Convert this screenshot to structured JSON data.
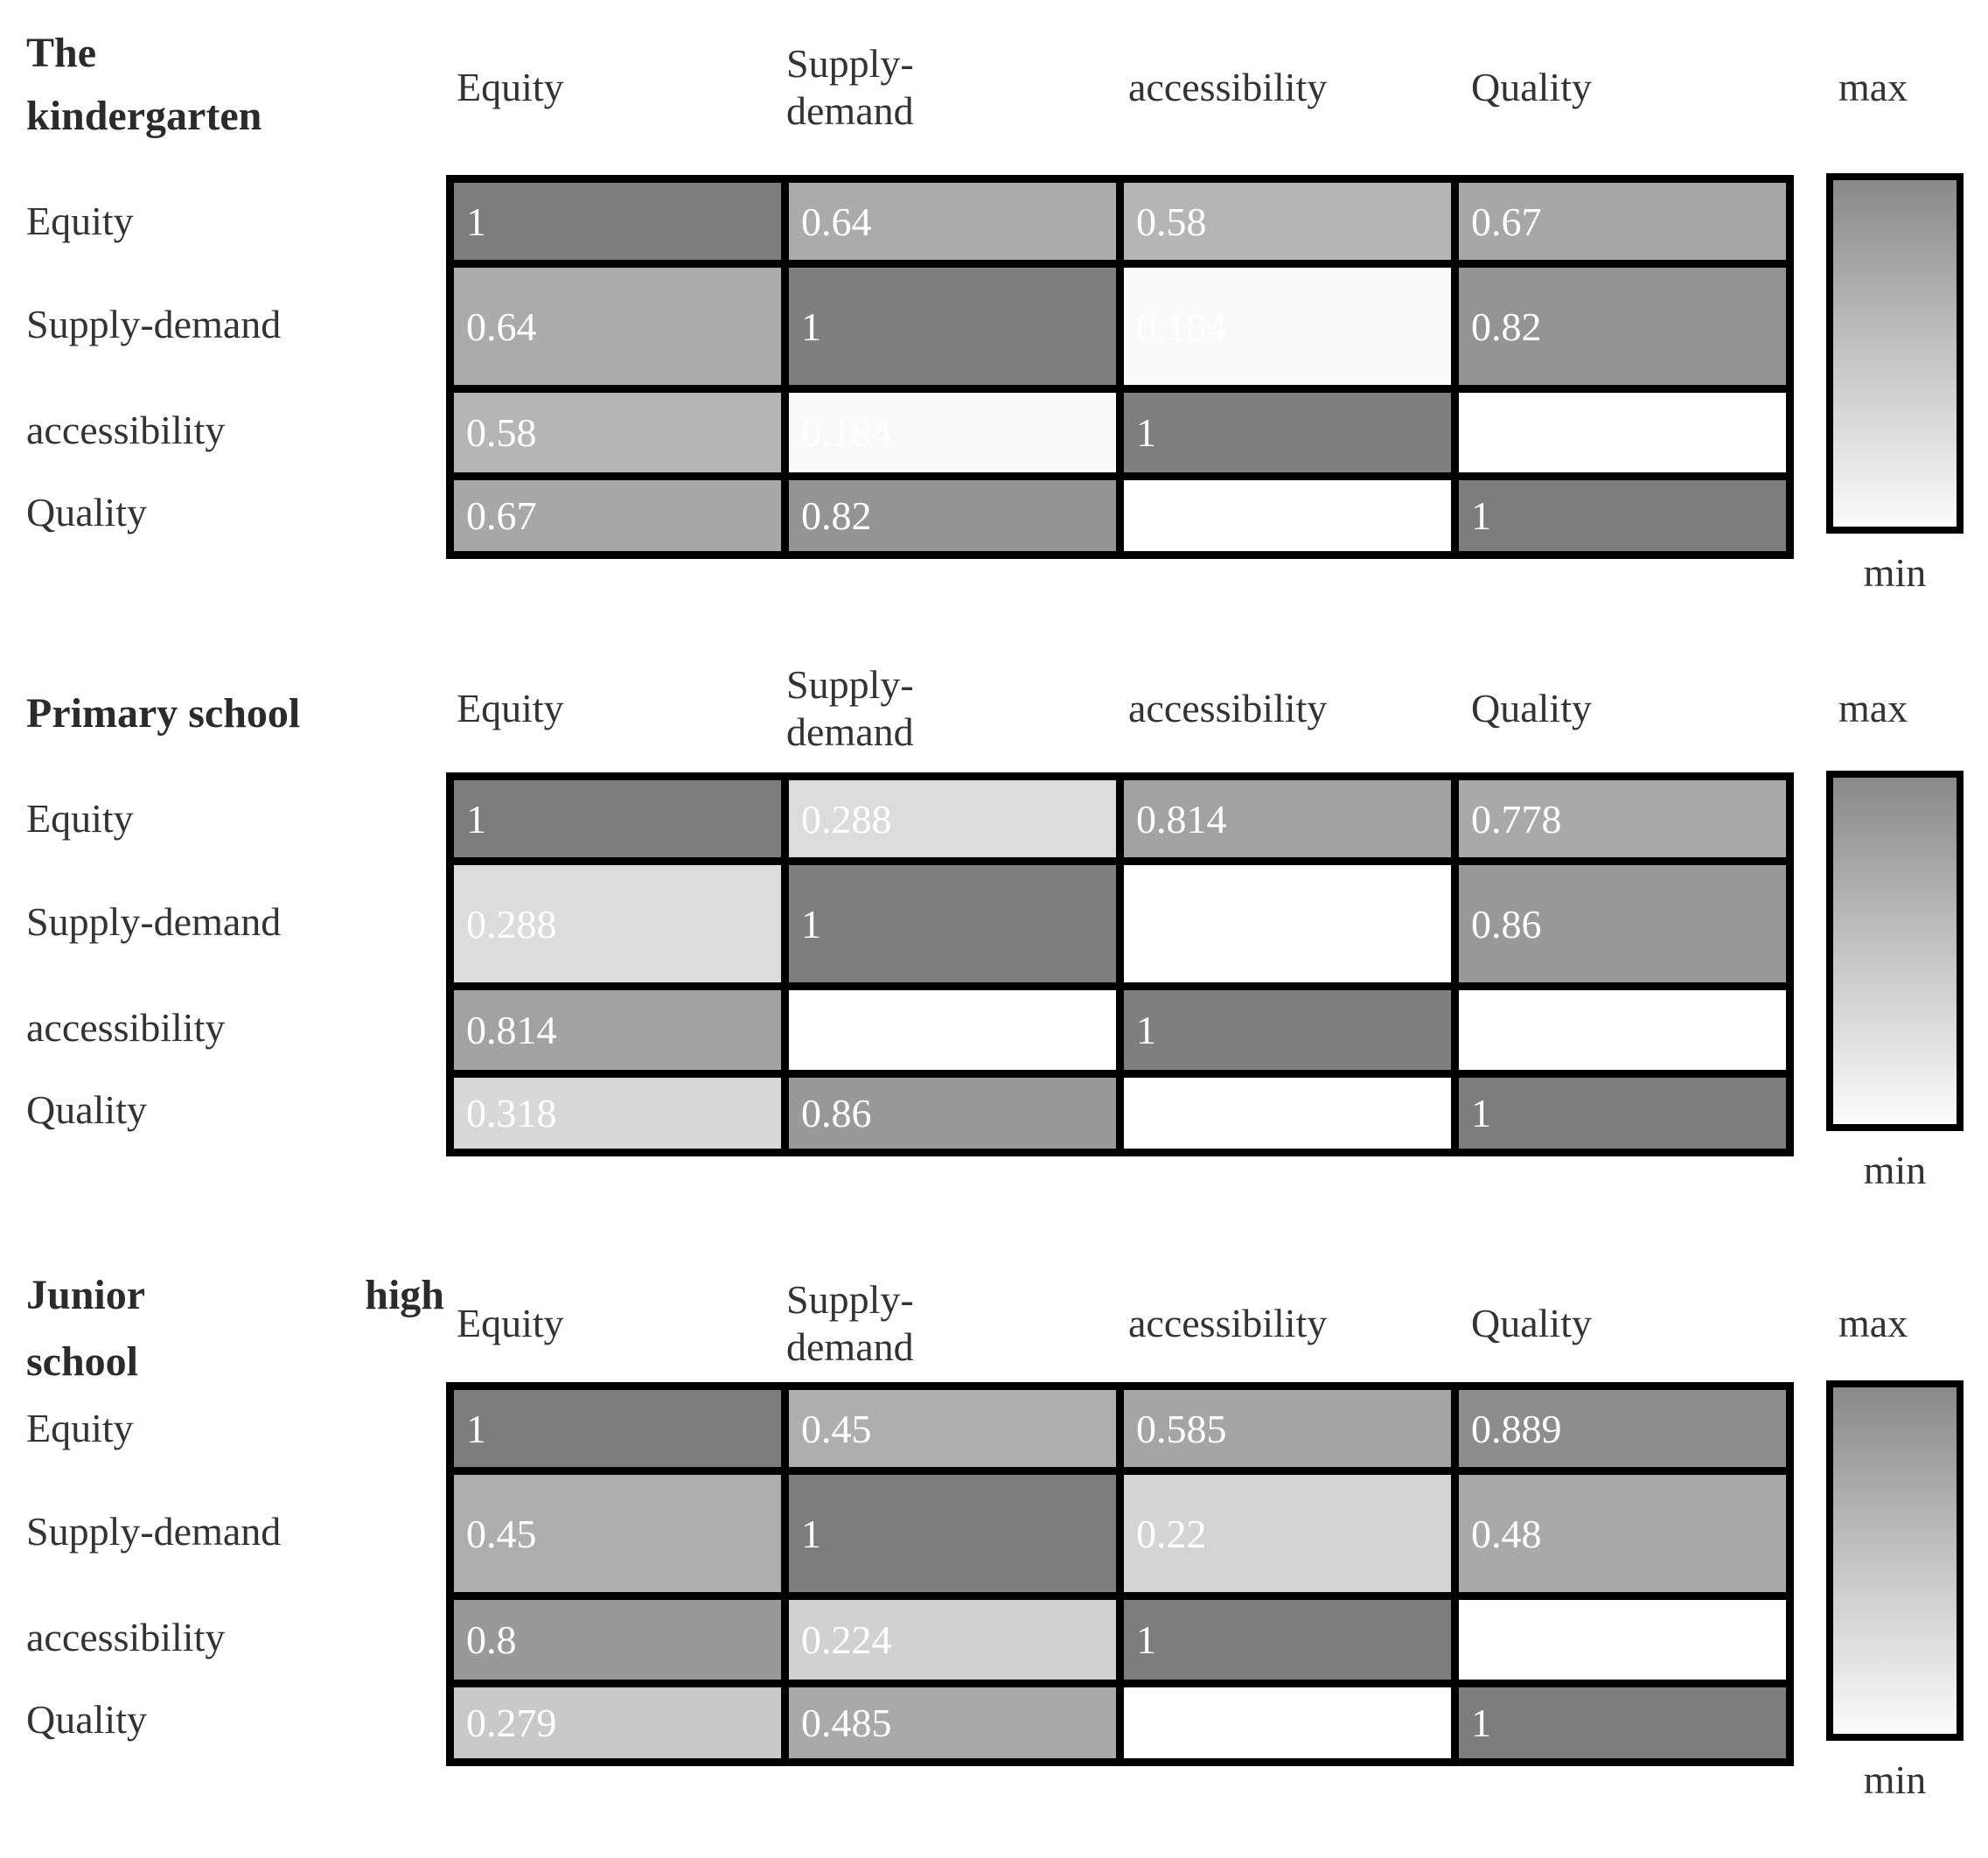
{
  "figure": {
    "panels": [
      {
        "title": "The kindergarten",
        "col_headers": [
          "Equity",
          "Supply-demand",
          "accessibility",
          "Quality"
        ],
        "row_headers": [
          "Equity",
          "Supply-demand",
          "accessibility",
          "Quality"
        ],
        "max_label": "max",
        "min_label": "min",
        "values": [
          [
            "1",
            "0.64",
            "0.58",
            "0.67"
          ],
          [
            "0.64",
            "1",
            "0.184",
            "0.82"
          ],
          [
            "0.58",
            "0.184",
            "1",
            ""
          ],
          [
            "0.67",
            "0.82",
            "",
            "1"
          ]
        ],
        "colors": [
          [
            "#7d7d7d",
            "#ababab",
            "#b5b5b5",
            "#a7a7a7"
          ],
          [
            "#ababab",
            "#7f7f7f",
            "#fafafa",
            "#949494"
          ],
          [
            "#b5b5b5",
            "#fafafa",
            "#7f7f7f",
            "#ffffff"
          ],
          [
            "#a7a7a7",
            "#949494",
            "#ffffff",
            "#7d7d7d"
          ]
        ]
      },
      {
        "title": "Primary school",
        "col_headers": [
          "Equity",
          "Supply-demand",
          "accessibility",
          "Quality"
        ],
        "row_headers": [
          "Equity",
          "Supply-demand",
          "accessibility",
          "Quality"
        ],
        "max_label": "max",
        "min_label": "min",
        "values": [
          [
            "1",
            "0.288",
            "0.814",
            "0.778"
          ],
          [
            "0.288",
            "1",
            "",
            "0.86"
          ],
          [
            "0.814",
            "",
            "1",
            ""
          ],
          [
            "0.318",
            "0.86",
            "",
            "1"
          ]
        ],
        "colors": [
          [
            "#7d7d7d",
            "#dcdcdc",
            "#a2a2a2",
            "#a9a9a9"
          ],
          [
            "#dcdcdc",
            "#7f7f7f",
            "#ffffff",
            "#999999"
          ],
          [
            "#a2a2a2",
            "#ffffff",
            "#7f7f7f",
            "#ffffff"
          ],
          [
            "#d8d8d8",
            "#999999",
            "#ffffff",
            "#7d7d7d"
          ]
        ]
      },
      {
        "title": "Junior high school",
        "col_headers": [
          "Equity",
          "Supply-demand",
          "accessibility",
          "Quality"
        ],
        "row_headers": [
          "Equity",
          "Supply-demand",
          "accessibility",
          "Quality"
        ],
        "max_label": "max",
        "min_label": "min",
        "values": [
          [
            "1",
            "0.45",
            "0.585",
            "0.889"
          ],
          [
            "0.45",
            "1",
            "0.22",
            "0.48"
          ],
          [
            "0.8",
            "0.224",
            "1",
            ""
          ],
          [
            "0.279",
            "0.485",
            "",
            "1"
          ]
        ],
        "colors": [
          [
            "#7d7d7d",
            "#aeaeae",
            "#a5a5a5",
            "#8d8d8d"
          ],
          [
            "#aeaeae",
            "#7d7d7d",
            "#d4d4d4",
            "#a9a9a9"
          ],
          [
            "#999999",
            "#d1d1d1",
            "#7d7d7d",
            "#ffffff"
          ],
          [
            "#c9c9c9",
            "#a9a9a9",
            "#ffffff",
            "#7d7d7d"
          ]
        ]
      }
    ]
  },
  "chart_data": [
    {
      "type": "heatmap",
      "title": "The kindergarten",
      "x_categories": [
        "Equity",
        "Supply-demand",
        "accessibility",
        "Quality"
      ],
      "y_categories": [
        "Equity",
        "Supply-demand",
        "accessibility",
        "Quality"
      ],
      "values": [
        [
          1,
          0.64,
          0.58,
          0.67
        ],
        [
          0.64,
          1,
          0.184,
          0.82
        ],
        [
          0.58,
          0.184,
          1,
          null
        ],
        [
          0.67,
          0.82,
          null,
          1
        ]
      ],
      "colorbar": {
        "top_label": "max",
        "bottom_label": "min",
        "scale": "dark=max, white=min"
      }
    },
    {
      "type": "heatmap",
      "title": "Primary school",
      "x_categories": [
        "Equity",
        "Supply-demand",
        "accessibility",
        "Quality"
      ],
      "y_categories": [
        "Equity",
        "Supply-demand",
        "accessibility",
        "Quality"
      ],
      "values": [
        [
          1,
          0.288,
          0.814,
          0.778
        ],
        [
          0.288,
          1,
          null,
          0.86
        ],
        [
          0.814,
          null,
          1,
          null
        ],
        [
          0.318,
          0.86,
          null,
          1
        ]
      ],
      "colorbar": {
        "top_label": "max",
        "bottom_label": "min",
        "scale": "dark=max, white=min"
      }
    },
    {
      "type": "heatmap",
      "title": "Junior high school",
      "x_categories": [
        "Equity",
        "Supply-demand",
        "accessibility",
        "Quality"
      ],
      "y_categories": [
        "Equity",
        "Supply-demand",
        "accessibility",
        "Quality"
      ],
      "values": [
        [
          1,
          0.45,
          0.585,
          0.889
        ],
        [
          0.45,
          1,
          0.22,
          0.48
        ],
        [
          0.8,
          0.224,
          1,
          null
        ],
        [
          0.279,
          0.485,
          null,
          1
        ]
      ],
      "colorbar": {
        "top_label": "max",
        "bottom_label": "min",
        "scale": "dark=max, white=min"
      }
    }
  ]
}
